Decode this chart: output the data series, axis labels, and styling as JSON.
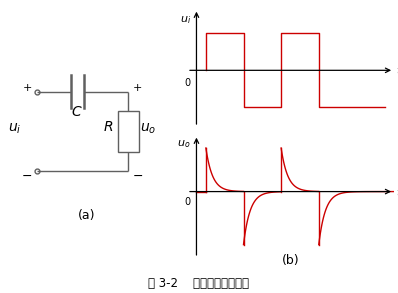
{
  "title": "图 3-2    微分电路及其波形",
  "label_a": "(a)",
  "label_b": "(b)",
  "fig_width": 3.98,
  "fig_height": 2.93,
  "dpi": 100,
  "waveform_color": "#cc0000",
  "circuit_color": "#606060",
  "text_color": "#000000",
  "background": "#ffffff"
}
